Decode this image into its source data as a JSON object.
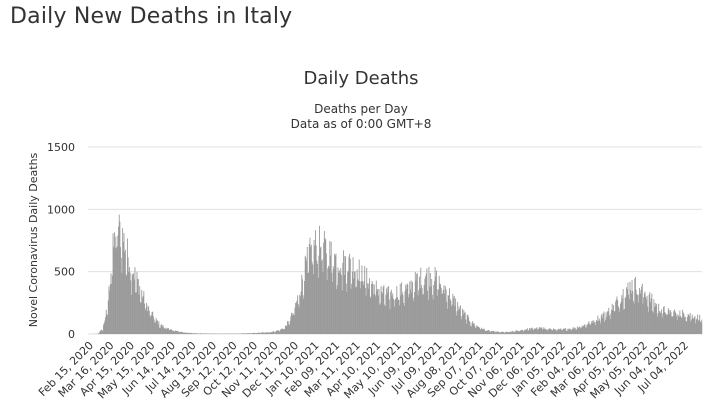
{
  "page": {
    "title": "Daily New Deaths in Italy"
  },
  "chart_data": {
    "type": "bar",
    "title": "Daily Deaths",
    "subtitle_lines": [
      "Deaths per Day",
      "Data as of 0:00 GMT+8"
    ],
    "xlabel": "",
    "ylabel": "Novel Coronavirus Daily Deaths",
    "ylim": [
      0,
      1500
    ],
    "yticks": [
      0,
      500,
      1000,
      1500
    ],
    "grid": true,
    "legend": "none",
    "bar_color": "#9a9a9a",
    "x_tick_labels": [
      "Feb 15, 2020",
      "Mar 16, 2020",
      "Apr 15, 2020",
      "May 15, 2020",
      "Jun 14, 2020",
      "Jul 14, 2020",
      "Aug 13, 2020",
      "Sep 12, 2020",
      "Oct 12, 2020",
      "Nov 11, 2020",
      "Dec 11, 2020",
      "Jan 10, 2021",
      "Feb 09, 2021",
      "Mar 11, 2021",
      "Apr 10, 2021",
      "May 10, 2021",
      "Jun 09, 2021",
      "Jul 09, 2021",
      "Aug 08, 2021",
      "Sep 07, 2021",
      "Oct 07, 2021",
      "Nov 06, 2021",
      "Dec 06, 2021",
      "Jan 05, 2022",
      "Feb 04, 2022",
      "Mar 06, 2022",
      "Apr 05, 2022",
      "May 05, 2022",
      "Jun 04, 2022",
      "Jul 04, 2022"
    ],
    "x_start_date": "2020-02-15",
    "x_end_date": "2022-07-31",
    "series": [
      {
        "values_weekly_avg": [
          0,
          0,
          2,
          40,
          200,
          600,
          800,
          750,
          620,
          500,
          420,
          320,
          230,
          160,
          110,
          70,
          50,
          35,
          25,
          18,
          12,
          8,
          6,
          5,
          4,
          4,
          3,
          3,
          3,
          3,
          3,
          3,
          4,
          5,
          6,
          8,
          10,
          12,
          15,
          20,
          30,
          50,
          100,
          180,
          300,
          450,
          580,
          650,
          680,
          650,
          620,
          590,
          550,
          530,
          540,
          520,
          500,
          460,
          420,
          380,
          350,
          320,
          300,
          300,
          310,
          320,
          330,
          350,
          380,
          410,
          430,
          440,
          430,
          400,
          360,
          320,
          270,
          220,
          170,
          130,
          90,
          65,
          45,
          30,
          22,
          18,
          15,
          14,
          16,
          20,
          26,
          32,
          38,
          42,
          45,
          44,
          40,
          36,
          34,
          35,
          38,
          42,
          50,
          60,
          72,
          90,
          110,
          130,
          150,
          180,
          220,
          270,
          320,
          360,
          370,
          350,
          320,
          280,
          240,
          200,
          180,
          170,
          165,
          160,
          155,
          150,
          140,
          130,
          120,
          110,
          100,
          95,
          90,
          100,
          120,
          140,
          160,
          180
        ]
      }
    ]
  }
}
